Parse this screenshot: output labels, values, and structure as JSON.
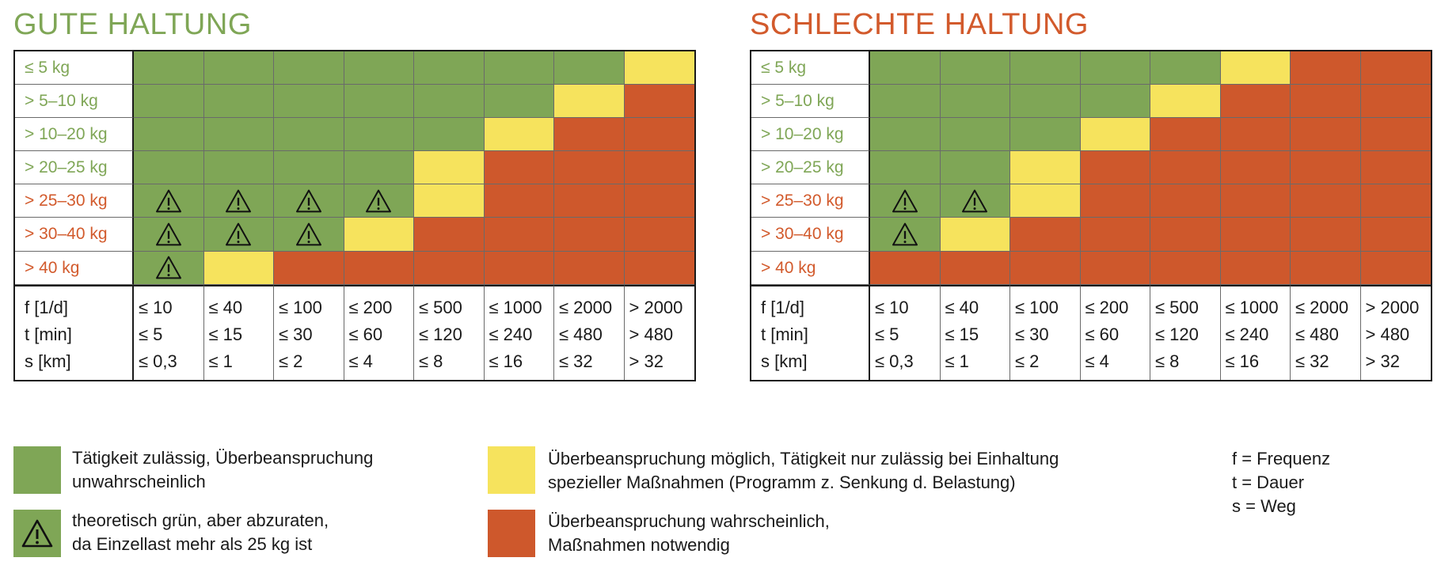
{
  "colors": {
    "green": "#7fa656",
    "yellow": "#f6e35d",
    "red": "#ce582c",
    "green_title": "#7fa656",
    "red_title": "#d25a2c"
  },
  "chart_data": [
    {
      "type": "heatmap",
      "title": "GUTE HALTUNG",
      "rows": [
        "≤ 5 kg",
        "> 5–10 kg",
        "> 10–20 kg",
        "> 20–25 kg",
        "> 25–30 kg",
        "> 30–40 kg",
        "> 40 kg"
      ],
      "row_label_colors": [
        "green",
        "green",
        "green",
        "green",
        "red",
        "red",
        "red"
      ],
      "columns": [
        {
          "f": "≤ 10",
          "t": "≤ 5",
          "s": "≤ 0,3"
        },
        {
          "f": "≤ 40",
          "t": "≤ 15",
          "s": "≤ 1"
        },
        {
          "f": "≤ 100",
          "t": "≤ 30",
          "s": "≤ 2"
        },
        {
          "f": "≤ 200",
          "t": "≤ 60",
          "s": "≤ 4"
        },
        {
          "f": "≤ 500",
          "t": "≤ 120",
          "s": "≤ 8"
        },
        {
          "f": "≤ 1000",
          "t": "≤ 240",
          "s": "≤ 16"
        },
        {
          "f": "≤ 2000",
          "t": "≤ 480",
          "s": "≤ 32"
        },
        {
          "f": "> 2000",
          "t": "> 480",
          "s": "> 32"
        }
      ],
      "cells": [
        [
          "G",
          "G",
          "G",
          "G",
          "G",
          "G",
          "G",
          "Y"
        ],
        [
          "G",
          "G",
          "G",
          "G",
          "G",
          "G",
          "Y",
          "R"
        ],
        [
          "G",
          "G",
          "G",
          "G",
          "G",
          "Y",
          "R",
          "R"
        ],
        [
          "G",
          "G",
          "G",
          "G",
          "Y",
          "R",
          "R",
          "R"
        ],
        [
          "W",
          "W",
          "W",
          "W",
          "Y",
          "R",
          "R",
          "R"
        ],
        [
          "W",
          "W",
          "W",
          "Y",
          "R",
          "R",
          "R",
          "R"
        ],
        [
          "W",
          "Y",
          "R",
          "R",
          "R",
          "R",
          "R",
          "R"
        ]
      ]
    },
    {
      "type": "heatmap",
      "title": "SCHLECHTE HALTUNG",
      "rows": [
        "≤ 5 kg",
        "> 5–10 kg",
        "> 10–20 kg",
        "> 20–25 kg",
        "> 25–30 kg",
        "> 30–40 kg",
        "> 40 kg"
      ],
      "row_label_colors": [
        "green",
        "green",
        "green",
        "green",
        "red",
        "red",
        "red"
      ],
      "columns": [
        {
          "f": "≤ 10",
          "t": "≤ 5",
          "s": "≤ 0,3"
        },
        {
          "f": "≤ 40",
          "t": "≤ 15",
          "s": "≤ 1"
        },
        {
          "f": "≤ 100",
          "t": "≤ 30",
          "s": "≤ 2"
        },
        {
          "f": "≤ 200",
          "t": "≤ 60",
          "s": "≤ 4"
        },
        {
          "f": "≤ 500",
          "t": "≤ 120",
          "s": "≤ 8"
        },
        {
          "f": "≤ 1000",
          "t": "≤ 240",
          "s": "≤ 16"
        },
        {
          "f": "≤ 2000",
          "t": "≤ 480",
          "s": "≤ 32"
        },
        {
          "f": "> 2000",
          "t": "> 480",
          "s": "> 32"
        }
      ],
      "cells": [
        [
          "G",
          "G",
          "G",
          "G",
          "G",
          "Y",
          "R",
          "R"
        ],
        [
          "G",
          "G",
          "G",
          "G",
          "Y",
          "R",
          "R",
          "R"
        ],
        [
          "G",
          "G",
          "G",
          "Y",
          "R",
          "R",
          "R",
          "R"
        ],
        [
          "G",
          "G",
          "Y",
          "R",
          "R",
          "R",
          "R",
          "R"
        ],
        [
          "W",
          "W",
          "Y",
          "R",
          "R",
          "R",
          "R",
          "R"
        ],
        [
          "W",
          "Y",
          "R",
          "R",
          "R",
          "R",
          "R",
          "R"
        ],
        [
          "R",
          "R",
          "R",
          "R",
          "R",
          "R",
          "R",
          "R"
        ]
      ]
    }
  ],
  "axis_labels": {
    "f": "f [1/d]",
    "t": "t [min]",
    "s": "s [km]"
  },
  "legend": {
    "green": [
      "Tätigkeit zulässig, Überbeanspruchung",
      "unwahrscheinlich"
    ],
    "warning": [
      "theoretisch grün, aber abzuraten,",
      "da Einzellast mehr als 25 kg ist"
    ],
    "yellow": [
      "Überbeanspruchung möglich, Tätigkeit nur zulässig bei Einhaltung",
      "spezieller Maßnahmen (Programm z. Senkung d. Belastung)"
    ],
    "red": [
      "Überbeanspruchung wahrscheinlich,",
      "Maßnahmen notwendig"
    ],
    "abbreviations": [
      "f = Frequenz",
      "t = Dauer",
      "s = Weg"
    ]
  }
}
